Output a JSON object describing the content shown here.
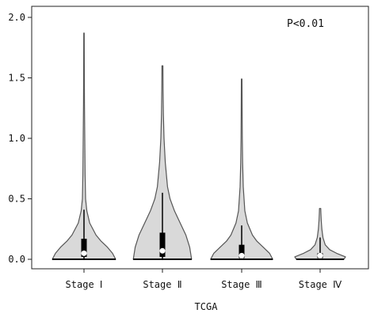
{
  "chart_data": {
    "type": "violin",
    "title": "",
    "xlabel": "TCGA",
    "ylabel": "",
    "ylim": [
      0,
      2.0
    ],
    "yticks": [
      "0.0",
      "0.5",
      "1.0",
      "1.5",
      "2.0"
    ],
    "annotation": "P<0.01",
    "grid": false,
    "legend": "none",
    "colors": {
      "fill": "#d9d9d9",
      "outline": "#555555",
      "box": "#000000",
      "median": "#ffffff"
    },
    "categories": [
      "Stage Ⅰ",
      "Stage Ⅱ",
      "Stage Ⅲ",
      "Stage Ⅳ"
    ],
    "series": [
      {
        "category": "Stage Ⅰ",
        "min": 0.0,
        "q1": 0.02,
        "median": 0.05,
        "q3": 0.17,
        "whisker_high": 0.41,
        "max": 1.87,
        "density": [
          [
            0.0,
            1.0
          ],
          [
            0.05,
            0.9
          ],
          [
            0.1,
            0.74
          ],
          [
            0.15,
            0.54
          ],
          [
            0.2,
            0.38
          ],
          [
            0.3,
            0.18
          ],
          [
            0.4,
            0.09
          ],
          [
            0.5,
            0.05
          ],
          [
            0.7,
            0.035
          ],
          [
            1.0,
            0.025
          ],
          [
            1.3,
            0.015
          ],
          [
            1.6,
            0.01
          ],
          [
            1.87,
            0.008
          ]
        ]
      },
      {
        "category": "Stage Ⅱ",
        "min": 0.0,
        "q1": 0.02,
        "median": 0.07,
        "q3": 0.22,
        "whisker_high": 0.55,
        "max": 1.6,
        "density": [
          [
            0.0,
            0.92
          ],
          [
            0.1,
            0.86
          ],
          [
            0.2,
            0.74
          ],
          [
            0.3,
            0.56
          ],
          [
            0.4,
            0.38
          ],
          [
            0.5,
            0.24
          ],
          [
            0.6,
            0.16
          ],
          [
            0.8,
            0.09
          ],
          [
            1.0,
            0.05
          ],
          [
            1.2,
            0.03
          ],
          [
            1.4,
            0.02
          ],
          [
            1.6,
            0.015
          ]
        ]
      },
      {
        "category": "Stage Ⅲ",
        "min": 0.0,
        "q1": 0.01,
        "median": 0.03,
        "q3": 0.12,
        "whisker_high": 0.28,
        "max": 1.49,
        "density": [
          [
            0.0,
            0.98
          ],
          [
            0.05,
            0.88
          ],
          [
            0.1,
            0.68
          ],
          [
            0.15,
            0.48
          ],
          [
            0.2,
            0.34
          ],
          [
            0.3,
            0.18
          ],
          [
            0.4,
            0.1
          ],
          [
            0.6,
            0.05
          ],
          [
            0.8,
            0.03
          ],
          [
            1.0,
            0.02
          ],
          [
            1.2,
            0.015
          ],
          [
            1.49,
            0.01
          ]
        ]
      },
      {
        "category": "Stage Ⅳ",
        "min": 0.0,
        "q1": 0.01,
        "median": 0.03,
        "q3": 0.05,
        "whisker_high": 0.18,
        "max": 0.42,
        "density": [
          [
            0.0,
            0.75
          ],
          [
            0.02,
            0.8
          ],
          [
            0.05,
            0.52
          ],
          [
            0.08,
            0.3
          ],
          [
            0.12,
            0.16
          ],
          [
            0.18,
            0.09
          ],
          [
            0.25,
            0.055
          ],
          [
            0.32,
            0.035
          ],
          [
            0.38,
            0.025
          ],
          [
            0.42,
            0.02
          ]
        ]
      }
    ]
  }
}
